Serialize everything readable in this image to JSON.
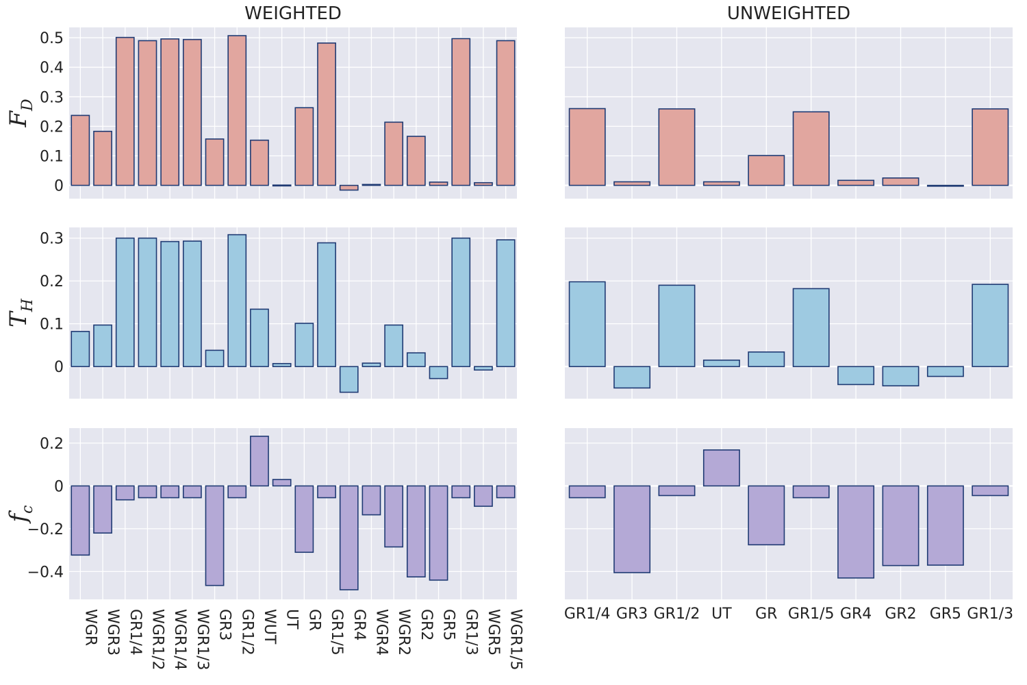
{
  "chart_data": {
    "type": "bar",
    "columns": [
      {
        "title": "WEIGHTED",
        "categories": [
          "WGR",
          "WGR3",
          "GR1/4",
          "WGR1/2",
          "WGR1/4",
          "WGR1/3",
          "GR3",
          "GR1/2",
          "WUT",
          "UT",
          "GR",
          "GR1/5",
          "GR4",
          "WGR4",
          "WGR2",
          "GR2",
          "GR5",
          "GR1/3",
          "WGR5",
          "WGR1/5"
        ],
        "x_tick_rotation": 90,
        "series": [
          {
            "values": [
              0.237,
              0.183,
              0.501,
              0.49,
              0.496,
              0.494,
              0.157,
              0.507,
              0.153,
              0.001,
              0.263,
              0.482,
              -0.016,
              0.003,
              0.214,
              0.166,
              0.011,
              0.497,
              0.009,
              0.49
            ]
          },
          {
            "values": [
              0.082,
              0.097,
              0.3,
              0.3,
              0.292,
              0.293,
              0.038,
              0.308,
              0.134,
              0.007,
              0.101,
              0.289,
              -0.06,
              0.008,
              0.097,
              0.032,
              -0.028,
              0.3,
              -0.008,
              0.296
            ]
          },
          {
            "values": [
              -0.323,
              -0.22,
              -0.065,
              -0.055,
              -0.055,
              -0.055,
              -0.465,
              -0.055,
              0.232,
              0.03,
              -0.31,
              -0.055,
              -0.485,
              -0.135,
              -0.285,
              -0.425,
              -0.44,
              -0.055,
              -0.095,
              -0.055
            ]
          }
        ]
      },
      {
        "title": "UNWEIGHTED",
        "categories": [
          "GR1/4",
          "GR3",
          "GR1/2",
          "UT",
          "GR",
          "GR1/5",
          "GR4",
          "GR2",
          "GR5",
          "GR1/3"
        ],
        "x_tick_rotation": 0,
        "series": [
          {
            "values": [
              0.26,
              0.012,
              0.259,
              0.012,
              0.101,
              0.249,
              0.017,
              0.025,
              -0.002,
              0.259
            ]
          },
          {
            "values": [
              0.198,
              -0.05,
              0.19,
              0.015,
              0.034,
              0.182,
              -0.042,
              -0.045,
              -0.023,
              0.192
            ]
          },
          {
            "values": [
              -0.055,
              -0.405,
              -0.045,
              0.168,
              -0.275,
              -0.055,
              -0.43,
              -0.372,
              -0.37,
              -0.045
            ]
          }
        ]
      }
    ],
    "rows": [
      {
        "ylabel": "F",
        "ylabel_sub": "D",
        "color": "#e1a69f",
        "ylim": [
          -0.045,
          0.535
        ],
        "yticks": [
          0,
          0.1,
          0.2,
          0.3,
          0.4,
          0.5
        ],
        "ytick_labels": [
          "0",
          "0.1",
          "0.2",
          "0.3",
          "0.4",
          "0.5"
        ]
      },
      {
        "ylabel": "T",
        "ylabel_sub": "H",
        "color": "#9ecae1",
        "ylim": [
          -0.075,
          0.325
        ],
        "yticks": [
          0,
          0.1,
          0.2,
          0.3
        ],
        "ytick_labels": [
          "0",
          "0.1",
          "0.2",
          "0.3"
        ]
      },
      {
        "ylabel": "f",
        "ylabel_sub": "c",
        "color": "#b4a9d6",
        "ylim": [
          -0.53,
          0.27
        ],
        "yticks": [
          -0.4,
          -0.2,
          0,
          0.2
        ],
        "ytick_labels": [
          "−0.4",
          "−0.2",
          "0",
          "0.2"
        ]
      }
    ],
    "bar_edge_color": "#1f3a73",
    "background_color": "#e5e6ef",
    "grid": true,
    "legend": "none"
  }
}
